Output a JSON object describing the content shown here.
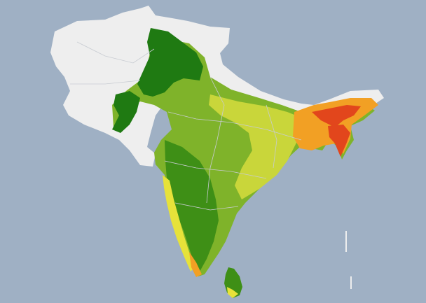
{
  "map": {
    "ocean_color": "#9fb0c4",
    "land_nodata_color": "#eeeeee",
    "border_color": "#c8ccd2",
    "palette": {
      "dark_green": "#1f7a12",
      "green": "#4e9a1c",
      "yellow_green": "#9fc42a",
      "yellow": "#e7e23a",
      "orange": "#f2a024",
      "red": "#e2461c"
    }
  }
}
